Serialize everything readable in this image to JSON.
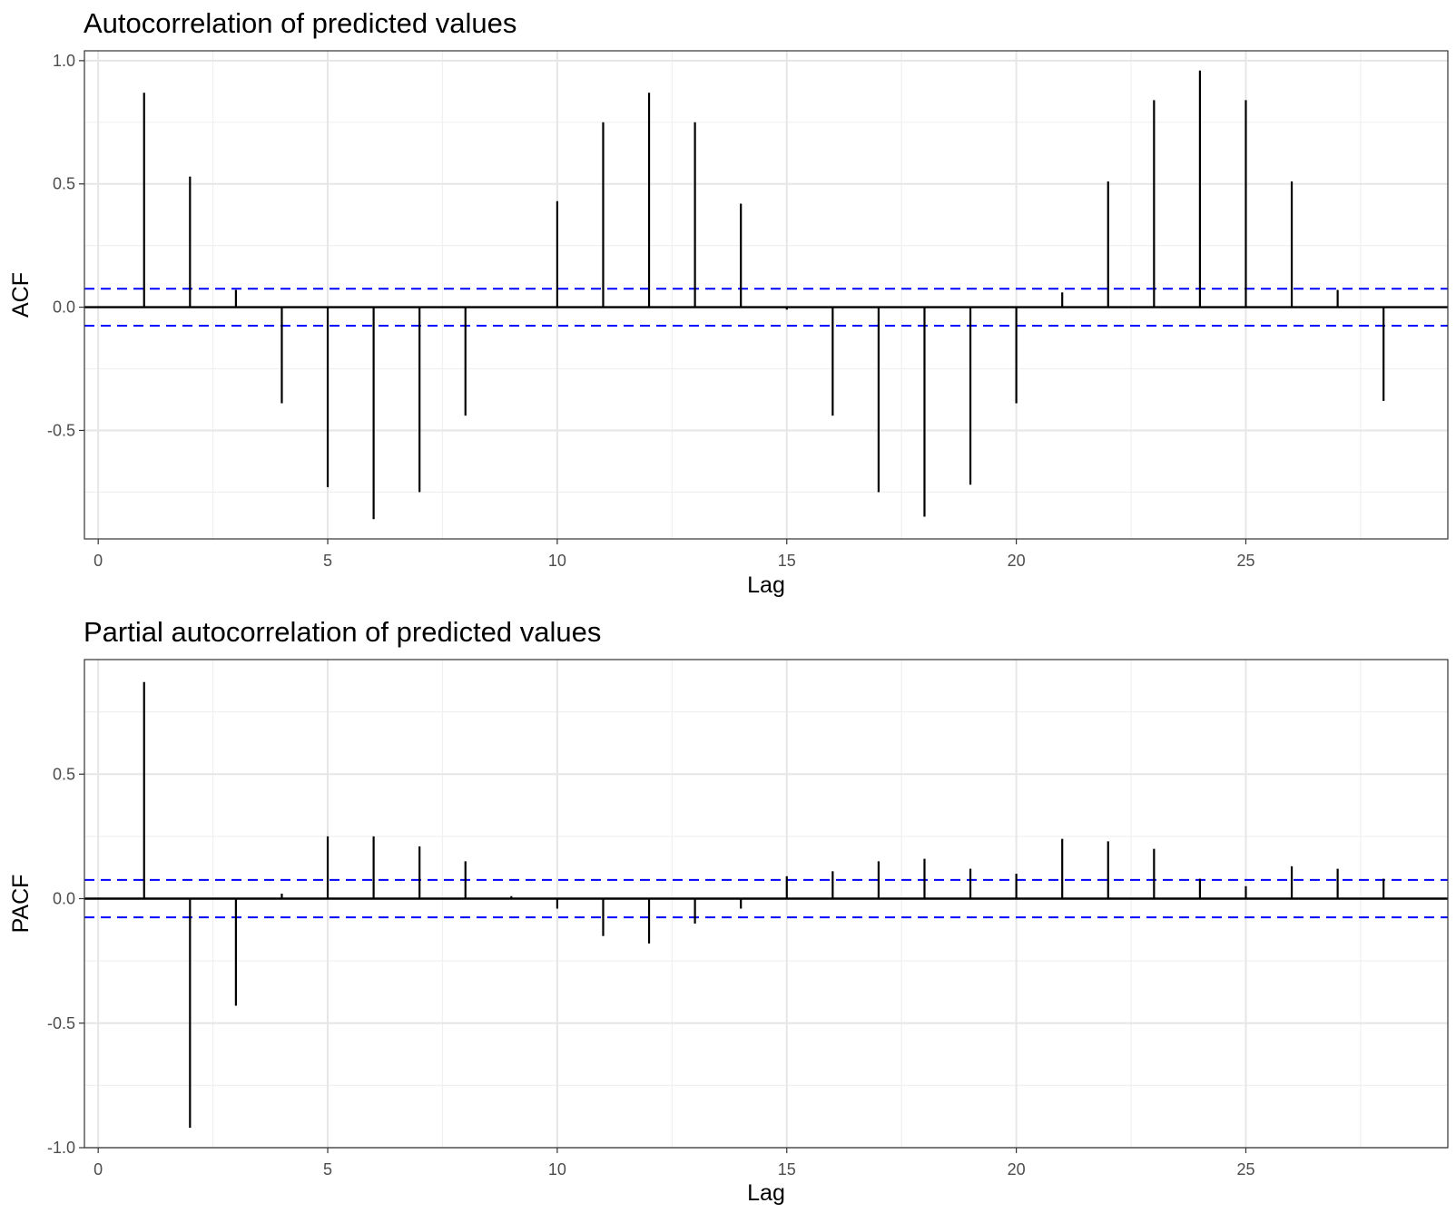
{
  "chart_data": [
    {
      "type": "bar",
      "title": "Autocorrelation of predicted values",
      "xlabel": "Lag",
      "ylabel": "ACF",
      "xlim": [
        -0.3,
        29.4
      ],
      "ylim": [
        -0.94,
        1.04
      ],
      "x_ticks": [
        0,
        5,
        10,
        15,
        20,
        25
      ],
      "x_tick_labels": [
        "0",
        "5",
        "10",
        "15",
        "20",
        "25"
      ],
      "y_ticks": [
        -0.5,
        0.0,
        0.5,
        1.0
      ],
      "y_tick_labels": [
        "-0.5",
        "0.0",
        "0.5",
        "1.0"
      ],
      "y_minor_ticks": [
        -0.75,
        -0.25,
        0.25,
        0.75
      ],
      "confidence_bound": 0.075,
      "grid": true,
      "lags": [
        1,
        2,
        3,
        4,
        5,
        6,
        7,
        8,
        9,
        10,
        11,
        12,
        13,
        14,
        15,
        16,
        17,
        18,
        19,
        20,
        21,
        22,
        23,
        24,
        25,
        26,
        27,
        28
      ],
      "values": [
        0.87,
        0.53,
        0.07,
        -0.39,
        -0.73,
        -0.86,
        -0.75,
        -0.44,
        0.0,
        0.43,
        0.75,
        0.87,
        0.75,
        0.42,
        -0.01,
        -0.44,
        -0.75,
        -0.85,
        -0.72,
        -0.39,
        0.06,
        0.51,
        0.84,
        0.96,
        0.84,
        0.51,
        0.07,
        -0.38
      ],
      "colors": {
        "bars": "#000000",
        "confidence": "#0000ff"
      }
    },
    {
      "type": "bar",
      "title": "Partial autocorrelation of predicted values",
      "xlabel": "Lag",
      "ylabel": "PACF",
      "xlim": [
        -0.3,
        29.4
      ],
      "ylim": [
        -1.0,
        0.96
      ],
      "x_ticks": [
        0,
        5,
        10,
        15,
        20,
        25
      ],
      "x_tick_labels": [
        "0",
        "5",
        "10",
        "15",
        "20",
        "25"
      ],
      "y_ticks": [
        -1.0,
        -0.5,
        0.0,
        0.5
      ],
      "y_tick_labels": [
        "-1.0",
        "-0.5",
        "0.0",
        "0.5"
      ],
      "y_minor_ticks": [
        -0.75,
        -0.25,
        0.25,
        0.75
      ],
      "confidence_bound": 0.075,
      "grid": true,
      "lags": [
        1,
        2,
        3,
        4,
        5,
        6,
        7,
        8,
        9,
        10,
        11,
        12,
        13,
        14,
        15,
        16,
        17,
        18,
        19,
        20,
        21,
        22,
        23,
        24,
        25,
        26,
        27,
        28
      ],
      "values": [
        0.87,
        -0.92,
        -0.43,
        0.02,
        0.25,
        0.25,
        0.21,
        0.15,
        0.01,
        -0.04,
        -0.15,
        -0.18,
        -0.1,
        -0.04,
        0.09,
        0.11,
        0.15,
        0.16,
        0.12,
        0.1,
        0.24,
        0.23,
        0.2,
        0.08,
        0.05,
        0.13,
        0.12,
        0.08
      ],
      "colors": {
        "bars": "#000000",
        "confidence": "#0000ff"
      }
    }
  ]
}
